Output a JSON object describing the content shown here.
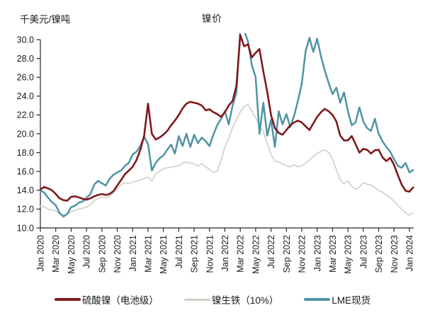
{
  "header": {
    "unit_label": "千美元/镍吨",
    "title": "镍价"
  },
  "chart_data": {
    "type": "line",
    "title": "镍价",
    "ylabel": "千美元/镍吨",
    "ylim": [
      10,
      30
    ],
    "grid": false,
    "legend_position": "bottom",
    "axis_color": "#262626",
    "y_ticks": [
      10,
      12,
      14,
      16,
      18,
      20,
      22,
      24,
      26,
      28,
      30
    ],
    "y_tick_labels": [
      "10.0",
      "12.0",
      "14.0",
      "16.0",
      "18.0",
      "20.0",
      "22.0",
      "24.0",
      "26.0",
      "28.0",
      "30.0"
    ],
    "x_tick_months": [
      0,
      2,
      4,
      6,
      8,
      10,
      12,
      14,
      16,
      18,
      20,
      22,
      24,
      26,
      28,
      30,
      32,
      34,
      36,
      38,
      40,
      42,
      44,
      46,
      48
    ],
    "x_tick_labels": [
      "Jan 2020",
      "Mar 2020",
      "May 2020",
      "Jul 2020",
      "Sep 2020",
      "Nov 2020",
      "Jan 2021",
      "Mar 2021",
      "May 2021",
      "Jul 2021",
      "Sep 2021",
      "Nov 2021",
      "Jan 2022",
      "Mar 2022",
      "May 2022",
      "Jul 2022",
      "Sep 2022",
      "Nov 2022",
      "Jan 2023",
      "Mar 2023",
      "May 2023",
      "Jul 2023",
      "Sep 2023",
      "Nov 2023",
      "Jan 2024"
    ],
    "x_start_month": 0,
    "x_step_months": 0.5,
    "x_axis_total_months": 48,
    "clip_value": 30.7,
    "series": [
      {
        "name": "硫酸镍（电池级）",
        "color": "#7f1a1d",
        "width": 2.6,
        "values": [
          14.1,
          14.35,
          14.2,
          14.0,
          13.6,
          13.15,
          12.95,
          12.9,
          13.3,
          13.35,
          13.25,
          13.1,
          13.0,
          13.15,
          13.35,
          13.5,
          13.6,
          13.5,
          13.6,
          13.9,
          14.5,
          15.1,
          15.7,
          16.1,
          16.5,
          17.2,
          18.3,
          19.8,
          23.2,
          20.0,
          19.4,
          19.6,
          19.9,
          20.3,
          20.9,
          21.4,
          22.0,
          22.7,
          23.2,
          23.4,
          23.3,
          23.2,
          23.0,
          22.5,
          22.6,
          22.3,
          22.1,
          21.8,
          22.3,
          23.0,
          23.5,
          25.1,
          30.5,
          29.3,
          29.5,
          28.1,
          28.6,
          29.0,
          26.6,
          24.5,
          22.0,
          20.6,
          20.1,
          19.9,
          20.4,
          20.9,
          21.2,
          21.4,
          21.2,
          20.8,
          20.4,
          21.1,
          21.8,
          22.3,
          22.65,
          22.4,
          22.0,
          21.3,
          19.8,
          19.3,
          19.3,
          19.75,
          18.9,
          18.0,
          18.4,
          18.3,
          17.9,
          18.25,
          18.3,
          17.5,
          17.1,
          17.45,
          16.7,
          15.6,
          14.6,
          13.95,
          13.85,
          14.3
        ]
      },
      {
        "name": "镍生铁（10%）",
        "color": "#d3d1c7",
        "width": 1.7,
        "values": [
          12.3,
          12.25,
          12.0,
          11.9,
          11.8,
          11.5,
          11.4,
          11.5,
          11.7,
          11.9,
          12.0,
          12.1,
          12.2,
          12.5,
          12.9,
          13.15,
          13.3,
          13.2,
          13.4,
          13.7,
          14.2,
          14.55,
          14.8,
          14.7,
          14.85,
          15.0,
          15.1,
          15.25,
          15.4,
          15.0,
          15.7,
          16.0,
          16.3,
          16.4,
          16.45,
          16.55,
          16.6,
          16.9,
          17.0,
          16.9,
          16.8,
          16.6,
          16.8,
          16.5,
          16.2,
          15.9,
          16.0,
          17.2,
          18.6,
          19.5,
          20.7,
          21.5,
          22.3,
          22.9,
          23.1,
          22.4,
          21.7,
          20.9,
          20.2,
          19.0,
          17.8,
          17.1,
          17.0,
          16.8,
          16.6,
          16.5,
          16.7,
          16.5,
          16.6,
          16.9,
          17.2,
          17.6,
          17.9,
          18.15,
          18.3,
          18.0,
          17.3,
          16.2,
          15.1,
          14.7,
          15.0,
          14.4,
          14.1,
          14.3,
          14.8,
          14.65,
          14.55,
          14.3,
          14.0,
          13.8,
          13.5,
          13.2,
          12.85,
          12.4,
          12.0,
          11.6,
          11.35,
          11.6
        ]
      },
      {
        "name": "LME现货",
        "color": "#4f93a5",
        "width": 2.5,
        "values": [
          14.0,
          13.75,
          13.2,
          12.75,
          12.4,
          11.6,
          11.2,
          11.5,
          12.2,
          12.35,
          12.7,
          12.8,
          13.2,
          13.6,
          14.6,
          15.0,
          14.75,
          14.5,
          15.2,
          15.65,
          15.9,
          16.1,
          16.6,
          16.9,
          17.8,
          18.1,
          18.7,
          19.7,
          18.9,
          16.1,
          16.9,
          17.4,
          17.7,
          18.3,
          18.85,
          17.9,
          19.75,
          18.7,
          20.0,
          18.6,
          19.9,
          19.0,
          19.6,
          19.2,
          18.7,
          19.9,
          20.9,
          21.6,
          22.4,
          21.0,
          23.0,
          24.4,
          31.0,
          31.0,
          29.8,
          27.3,
          26.0,
          20.0,
          23.3,
          19.8,
          21.5,
          18.6,
          22.4,
          21.0,
          22.1,
          20.7,
          21.9,
          23.5,
          25.3,
          28.8,
          30.2,
          28.7,
          30.1,
          28.2,
          26.7,
          25.4,
          24.2,
          24.9,
          23.3,
          24.4,
          22.4,
          20.9,
          21.2,
          22.8,
          21.3,
          20.6,
          20.3,
          21.6,
          20.0,
          19.2,
          18.6,
          18.1,
          17.3,
          16.6,
          16.4,
          16.9,
          15.9,
          16.15
        ]
      }
    ]
  }
}
